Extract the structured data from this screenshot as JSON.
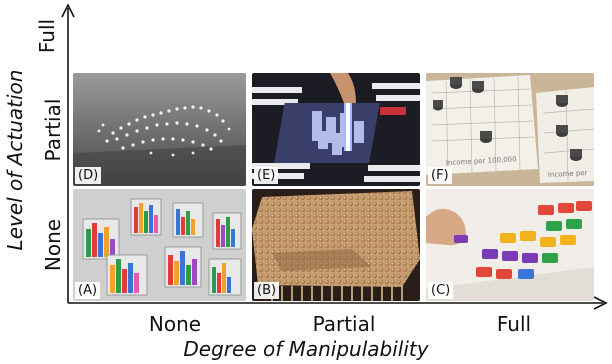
{
  "x_axis": {
    "title": "Degree of Manipulability",
    "ticks": [
      "None",
      "Partial",
      "Full"
    ]
  },
  "y_axis": {
    "title": "Level of Actuation",
    "ticks": [
      "None",
      "Partial",
      "Full"
    ]
  },
  "panels": [
    {
      "id": "D",
      "label": "(D)",
      "row": "Partial",
      "col": "None"
    },
    {
      "id": "E",
      "label": "(E)",
      "row": "Partial",
      "col": "Partial"
    },
    {
      "id": "F",
      "label": "(F)",
      "row": "Partial",
      "col": "Full"
    },
    {
      "id": "A",
      "label": "(A)",
      "row": "None",
      "col": "None"
    },
    {
      "id": "B",
      "label": "(B)",
      "row": "None",
      "col": "Partial"
    },
    {
      "id": "C",
      "label": "(C)",
      "row": "None",
      "col": "Full"
    }
  ],
  "panel_f_text": {
    "chart_text_1": "Income per 100,000",
    "chart_text_2": "Income per"
  }
}
